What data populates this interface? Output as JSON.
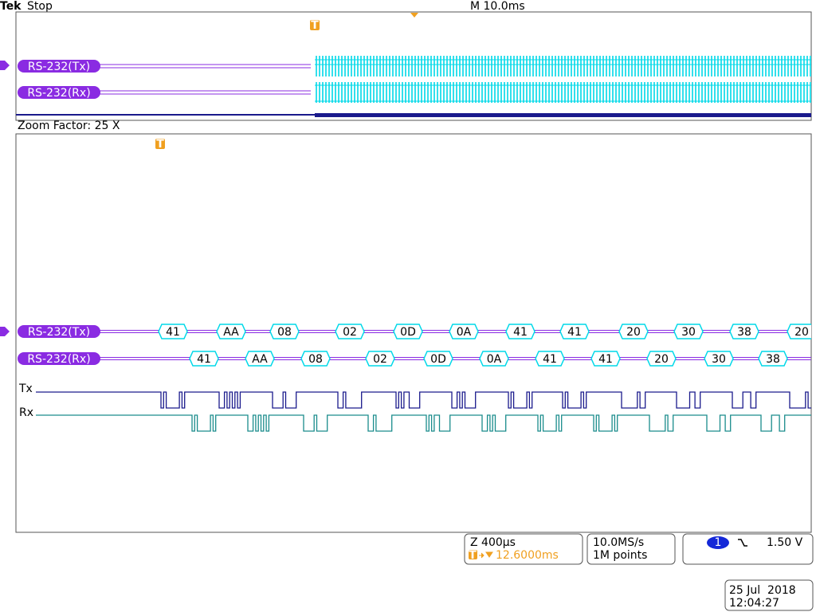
{
  "header": {
    "brand": "Tek",
    "status": "Stop",
    "timebase": "M 10.0ms",
    "trigger_marker": "T"
  },
  "overview": {
    "buses": [
      "RS-232(Tx)",
      "RS-232(Rx)"
    ]
  },
  "zoom": {
    "factor": "Zoom Factor: 25 X",
    "buses": [
      {
        "label": "RS-232(Tx)",
        "bytes": [
          "41",
          "AA",
          "08",
          "02",
          "0D",
          "0A",
          "41",
          "41",
          "20",
          "30",
          "38",
          "20"
        ]
      },
      {
        "label": "RS-232(Rx)",
        "bytes": [
          "41",
          "AA",
          "08",
          "02",
          "0D",
          "0A",
          "41",
          "41",
          "20",
          "30",
          "38"
        ]
      }
    ],
    "channels": [
      "Tx",
      "Rx"
    ]
  },
  "status_bar": {
    "zoom_scale": "Z 400µs",
    "trigger_position": "12.6000ms",
    "sample_rate": "10.0MS/s",
    "record_length": "1M points",
    "trigger_channel": "1",
    "trigger_level": "1.50 V",
    "date": "25 Jul  2018",
    "time": "12:04:27"
  }
}
